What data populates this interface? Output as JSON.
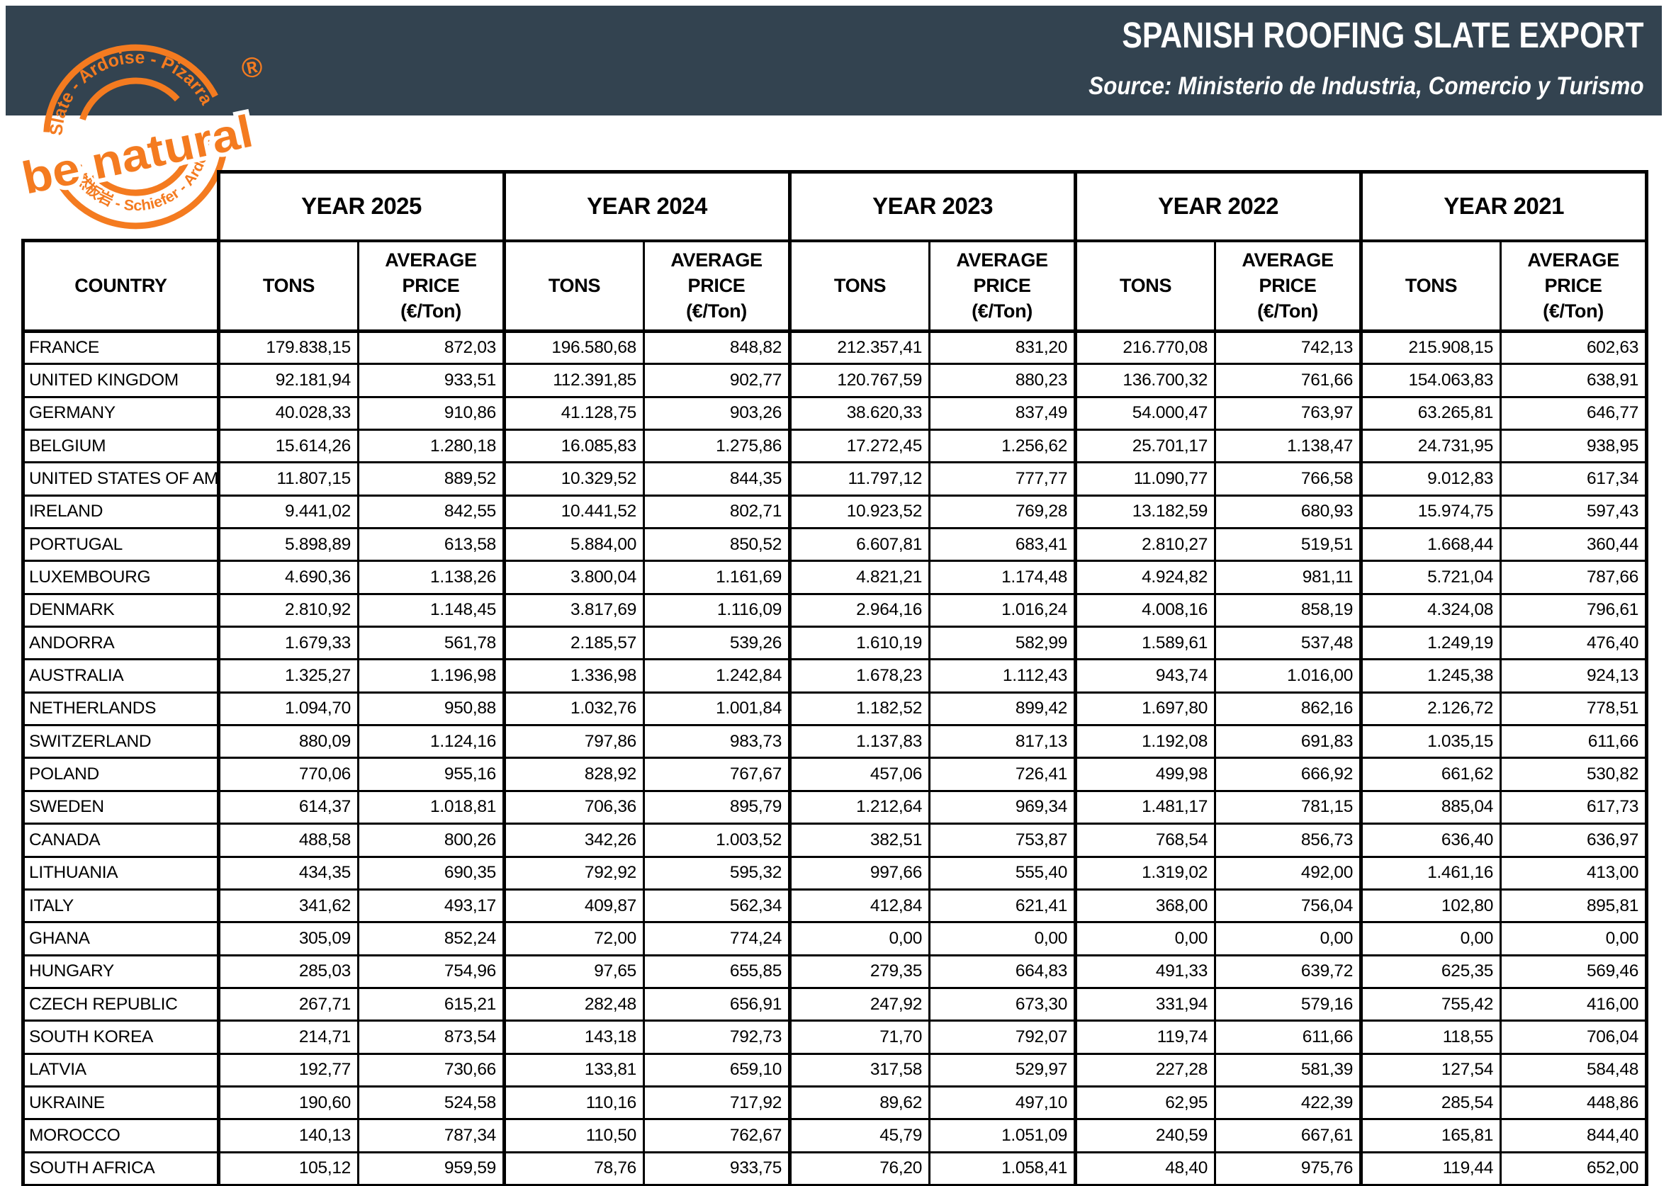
{
  "header": {
    "title": "SPANISH ROOFING SLATE EXPORT",
    "source": "Source: Ministerio de Industria, Comercio y Turismo",
    "background_color": "#334350",
    "text_color": "#ffffff"
  },
  "logo": {
    "top_arc_text": "Slate - Ardoise - Pizarra",
    "bottom_arc_text": "自然板岩 - Schiefer - Ardósia",
    "center_text": "be natural",
    "registered_mark": "®",
    "accent_color": "#f47b20"
  },
  "table": {
    "years": [
      "YEAR 2025",
      "YEAR 2024",
      "YEAR 2023",
      "YEAR 2022",
      "YEAR 2021"
    ],
    "country_header": "COUNTRY",
    "tons_header": "TONS",
    "avg_price_line1": "AVERAGE PRICE",
    "avg_price_line2": "(€/Ton)",
    "rows": [
      {
        "country": "FRANCE",
        "values": [
          "179.838,15",
          "872,03",
          "196.580,68",
          "848,82",
          "212.357,41",
          "831,20",
          "216.770,08",
          "742,13",
          "215.908,15",
          "602,63"
        ]
      },
      {
        "country": "UNITED KINGDOM",
        "values": [
          "92.181,94",
          "933,51",
          "112.391,85",
          "902,77",
          "120.767,59",
          "880,23",
          "136.700,32",
          "761,66",
          "154.063,83",
          "638,91"
        ]
      },
      {
        "country": "GERMANY",
        "values": [
          "40.028,33",
          "910,86",
          "41.128,75",
          "903,26",
          "38.620,33",
          "837,49",
          "54.000,47",
          "763,97",
          "63.265,81",
          "646,77"
        ]
      },
      {
        "country": "BELGIUM",
        "values": [
          "15.614,26",
          "1.280,18",
          "16.085,83",
          "1.275,86",
          "17.272,45",
          "1.256,62",
          "25.701,17",
          "1.138,47",
          "24.731,95",
          "938,95"
        ]
      },
      {
        "country": "UNITED STATES OF AMERICA",
        "values": [
          "11.807,15",
          "889,52",
          "10.329,52",
          "844,35",
          "11.797,12",
          "777,77",
          "11.090,77",
          "766,58",
          "9.012,83",
          "617,34"
        ]
      },
      {
        "country": "IRELAND",
        "values": [
          "9.441,02",
          "842,55",
          "10.441,52",
          "802,71",
          "10.923,52",
          "769,28",
          "13.182,59",
          "680,93",
          "15.974,75",
          "597,43"
        ]
      },
      {
        "country": "PORTUGAL",
        "values": [
          "5.898,89",
          "613,58",
          "5.884,00",
          "850,52",
          "6.607,81",
          "683,41",
          "2.810,27",
          "519,51",
          "1.668,44",
          "360,44"
        ]
      },
      {
        "country": "LUXEMBOURG",
        "values": [
          "4.690,36",
          "1.138,26",
          "3.800,04",
          "1.161,69",
          "4.821,21",
          "1.174,48",
          "4.924,82",
          "981,11",
          "5.721,04",
          "787,66"
        ]
      },
      {
        "country": "DENMARK",
        "values": [
          "2.810,92",
          "1.148,45",
          "3.817,69",
          "1.116,09",
          "2.964,16",
          "1.016,24",
          "4.008,16",
          "858,19",
          "4.324,08",
          "796,61"
        ]
      },
      {
        "country": "ANDORRA",
        "values": [
          "1.679,33",
          "561,78",
          "2.185,57",
          "539,26",
          "1.610,19",
          "582,99",
          "1.589,61",
          "537,48",
          "1.249,19",
          "476,40"
        ]
      },
      {
        "country": "AUSTRALIA",
        "values": [
          "1.325,27",
          "1.196,98",
          "1.336,98",
          "1.242,84",
          "1.678,23",
          "1.112,43",
          "943,74",
          "1.016,00",
          "1.245,38",
          "924,13"
        ]
      },
      {
        "country": "NETHERLANDS",
        "values": [
          "1.094,70",
          "950,88",
          "1.032,76",
          "1.001,84",
          "1.182,52",
          "899,42",
          "1.697,80",
          "862,16",
          "2.126,72",
          "778,51"
        ]
      },
      {
        "country": "SWITZERLAND",
        "values": [
          "880,09",
          "1.124,16",
          "797,86",
          "983,73",
          "1.137,83",
          "817,13",
          "1.192,08",
          "691,83",
          "1.035,15",
          "611,66"
        ]
      },
      {
        "country": "POLAND",
        "values": [
          "770,06",
          "955,16",
          "828,92",
          "767,67",
          "457,06",
          "726,41",
          "499,98",
          "666,92",
          "661,62",
          "530,82"
        ]
      },
      {
        "country": "SWEDEN",
        "values": [
          "614,37",
          "1.018,81",
          "706,36",
          "895,79",
          "1.212,64",
          "969,34",
          "1.481,17",
          "781,15",
          "885,04",
          "617,73"
        ]
      },
      {
        "country": "CANADA",
        "values": [
          "488,58",
          "800,26",
          "342,26",
          "1.003,52",
          "382,51",
          "753,87",
          "768,54",
          "856,73",
          "636,40",
          "636,97"
        ]
      },
      {
        "country": "LITHUANIA",
        "values": [
          "434,35",
          "690,35",
          "792,92",
          "595,32",
          "997,66",
          "555,40",
          "1.319,02",
          "492,00",
          "1.461,16",
          "413,00"
        ]
      },
      {
        "country": "ITALY",
        "values": [
          "341,62",
          "493,17",
          "409,87",
          "562,34",
          "412,84",
          "621,41",
          "368,00",
          "756,04",
          "102,80",
          "895,81"
        ]
      },
      {
        "country": "GHANA",
        "values": [
          "305,09",
          "852,24",
          "72,00",
          "774,24",
          "0,00",
          "0,00",
          "0,00",
          "0,00",
          "0,00",
          "0,00"
        ]
      },
      {
        "country": "HUNGARY",
        "values": [
          "285,03",
          "754,96",
          "97,65",
          "655,85",
          "279,35",
          "664,83",
          "491,33",
          "639,72",
          "625,35",
          "569,46"
        ]
      },
      {
        "country": "CZECH REPUBLIC",
        "values": [
          "267,71",
          "615,21",
          "282,48",
          "656,91",
          "247,92",
          "673,30",
          "331,94",
          "579,16",
          "755,42",
          "416,00"
        ]
      },
      {
        "country": "SOUTH KOREA",
        "values": [
          "214,71",
          "873,54",
          "143,18",
          "792,73",
          "71,70",
          "792,07",
          "119,74",
          "611,66",
          "118,55",
          "706,04"
        ]
      },
      {
        "country": "LATVIA",
        "values": [
          "192,77",
          "730,66",
          "133,81",
          "659,10",
          "317,58",
          "529,97",
          "227,28",
          "581,39",
          "127,54",
          "584,48"
        ]
      },
      {
        "country": "UKRAINE",
        "values": [
          "190,60",
          "524,58",
          "110,16",
          "717,92",
          "89,62",
          "497,10",
          "62,95",
          "422,39",
          "285,54",
          "448,86"
        ]
      },
      {
        "country": "MOROCCO",
        "values": [
          "140,13",
          "787,34",
          "110,50",
          "762,67",
          "45,79",
          "1.051,09",
          "240,59",
          "667,61",
          "165,81",
          "844,40"
        ]
      },
      {
        "country": "SOUTH AFRICA",
        "values": [
          "105,12",
          "959,59",
          "78,76",
          "933,75",
          "76,20",
          "1.058,41",
          "48,40",
          "975,76",
          "119,44",
          "652,00"
        ]
      }
    ]
  }
}
